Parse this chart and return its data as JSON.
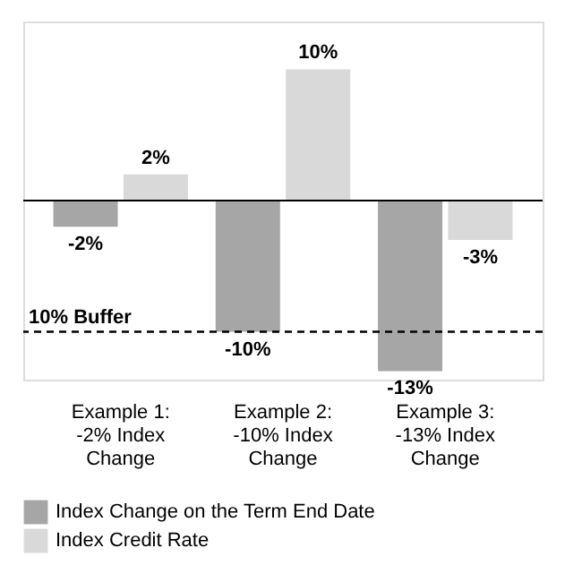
{
  "chart_data": {
    "type": "bar",
    "categories": [
      "Example 1: -2% Index Change",
      "Example 2: -10% Index Change",
      "Example 3: -13% Index Change"
    ],
    "series": [
      {
        "name": "Index Change on the Term End Date",
        "color": "#a6a6a6",
        "values": [
          -2,
          -10,
          -13
        ],
        "value_labels": [
          "-2%",
          "-10%",
          "-13%"
        ]
      },
      {
        "name": "Index Credit Rate",
        "color": "#d9d9d9",
        "values": [
          2,
          10,
          -3
        ],
        "value_labels": [
          "2%",
          "10%",
          "-3%"
        ]
      }
    ],
    "ref_lines": [
      {
        "axis": "y",
        "value": -10,
        "label": "10% Buffer",
        "line_style": "dashed",
        "color": "#000000"
      }
    ],
    "legend": "bottom",
    "grid": false
  }
}
